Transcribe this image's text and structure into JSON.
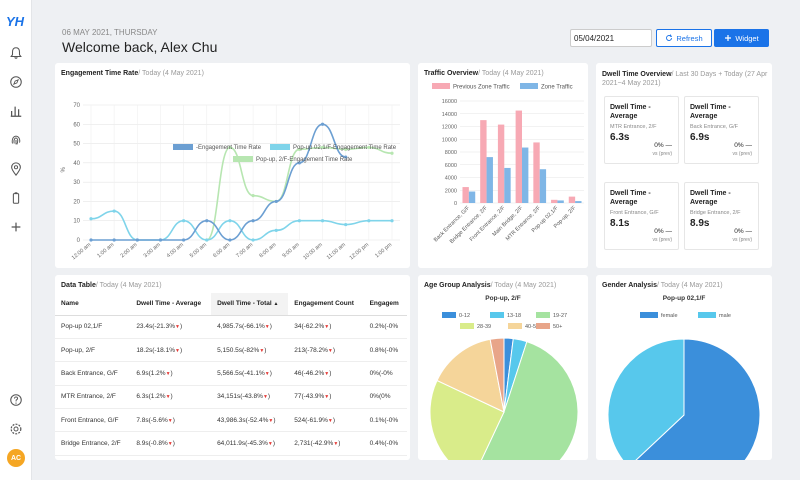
{
  "sidebar": {
    "logo": "YH",
    "items": [
      "bell-icon",
      "compass-icon",
      "bar-chart-icon",
      "fingerprint-icon",
      "location-pin-icon",
      "battery-icon",
      "plus-icon"
    ],
    "bottom": [
      "help-icon",
      "settings-icon"
    ],
    "avatar": "AC"
  },
  "header": {
    "date": "06 MAY 2021, THURSDAY",
    "welcome": "Welcome back, Alex Chu",
    "date_value": "05/04/2021",
    "refresh_label": "Refresh",
    "widget_label": "Widget"
  },
  "engagement": {
    "title": "Engagement Time Rate",
    "subtitle": "/ Today (4 May 2021)",
    "ylabel": "%",
    "yticks": [
      "0",
      "10",
      "20",
      "30",
      "40",
      "50",
      "60",
      "70"
    ],
    "xticks": [
      "12:00 am",
      "1:00 am",
      "2:00 am",
      "3:00 am",
      "4:00 am",
      "5:00 am",
      "6:00 am",
      "7:00 am",
      "8:00 am",
      "9:00 am",
      "10:00 am",
      "11:00 am",
      "12:00 pm",
      "1:00 pm"
    ],
    "colors": {
      "main": "#6c9fd2",
      "popup02": "#7fd4ea",
      "popup2": "#b7e6b1"
    }
  },
  "traffic": {
    "title": "Traffic Overview",
    "subtitle": "/ Today (4 May 2021)",
    "yticks": [
      "0",
      "2000",
      "4000",
      "6000",
      "8000",
      "10000",
      "12000",
      "14000",
      "16000"
    ],
    "colors": {
      "prev": "#f7a9b4",
      "zone": "#7fb6e6"
    }
  },
  "dwell_overview": {
    "title": "Dwell Time Overview",
    "subtitle": "/ Last 30 Days + Today (27 Apr 2021~4 May 2021)",
    "boxes": [
      {
        "title": "Dwell Time - Average",
        "loc": "MTR Entrance, 2/F",
        "value": "6.3s",
        "pct": "0% —",
        "prev": "vs (prev)"
      },
      {
        "title": "Dwell Time - Average",
        "loc": "Back Entrance, G/F",
        "value": "6.9s",
        "pct": "0% —",
        "prev": "vs (prev)"
      },
      {
        "title": "Dwell Time - Average",
        "loc": "Front Entrance, G/F",
        "value": "8.1s",
        "pct": "0% —",
        "prev": "vs (prev)"
      },
      {
        "title": "Dwell Time - Average",
        "loc": "Bridge Entrance, 2/F",
        "value": "8.9s",
        "pct": "0% —",
        "prev": "vs (prev)"
      }
    ]
  },
  "data_table": {
    "title": "Data Table",
    "subtitle": "/ Today (4 May 2021)",
    "headers": [
      "Name",
      "Dwell Time - Average",
      "Dwell Time - Total",
      "Engagement Count",
      "Engagem"
    ],
    "rows": [
      {
        "name": "Pop-up 02,1/F",
        "avg": "23.4s(-21.3%",
        "total": "4,985.7s(-66.1%",
        "count": "34(-62.2%",
        "eng": "0.2%(-0%"
      },
      {
        "name": "Pop-up, 2/F",
        "avg": "18.2s(-18.1%",
        "total": "5,150.5s(-82%",
        "count": "213(-78.2%",
        "eng": "0.8%(-0%"
      },
      {
        "name": "Back Entrance, G/F",
        "avg": "6.9s(1.2%",
        "total": "5,566.5s(-41.1%",
        "count": "46(-46.2%",
        "eng": "0%(-0%"
      },
      {
        "name": "MTR Entrance, 2/F",
        "avg": "6.3s(1.2%",
        "total": "34,151s(-43.8%",
        "count": "77(-43.9%",
        "eng": "0%(0%"
      },
      {
        "name": "Front Entrance, G/F",
        "avg": "7.8s(-5.6%",
        "total": "43,986.3s(-52.4%",
        "count": "524(-61.9%",
        "eng": "0.1%(-0%"
      },
      {
        "name": "Bridge Entrance, 2/F",
        "avg": "8.9s(-0.8%",
        "total": "64,011.9s(-45.3%",
        "count": "2,731(-42.9%",
        "eng": "0.4%(-0%"
      }
    ]
  },
  "age_group": {
    "title": "Age Group Analysis",
    "subtitle": "/ Today (4 May 2021)",
    "chart_title": "Pop-up, 2/F",
    "legend": [
      {
        "label": "0-12",
        "color": "#3b8fdb"
      },
      {
        "label": "13-18",
        "color": "#57c8ec"
      },
      {
        "label": "19-27",
        "color": "#a5e3a0"
      },
      {
        "label": "28-39",
        "color": "#d9ec8a"
      },
      {
        "label": "40-50",
        "color": "#f5d59a"
      },
      {
        "label": "50+",
        "color": "#e8a589"
      }
    ]
  },
  "gender": {
    "title": "Gender Analysis",
    "subtitle": "/ Today (4 May 2021)",
    "chart_title": "Pop-up 02,1/F",
    "legend": [
      {
        "label": "female",
        "color": "#3b8fdb"
      },
      {
        "label": "male",
        "color": "#57c8ec"
      }
    ]
  },
  "chart_data": [
    {
      "type": "line",
      "title": "Engagement Time Rate",
      "ylabel": "%",
      "ylim": [
        0,
        70
      ],
      "x": [
        "12:00 am",
        "1:00 am",
        "2:00 am",
        "3:00 am",
        "4:00 am",
        "5:00 am",
        "6:00 am",
        "7:00 am",
        "8:00 am",
        "9:00 am",
        "10:00 am",
        "11:00 am",
        "12:00 pm",
        "1:00 pm"
      ],
      "series": [
        {
          "name": "-Engagement Time Rate",
          "values": [
            0,
            0,
            0,
            0,
            0,
            10,
            0,
            10,
            20,
            40,
            60,
            43,
            null,
            null
          ]
        },
        {
          "name": "Pop-up 02,1/F-Engagement Time Rate",
          "values": [
            11,
            15,
            0,
            0,
            10,
            0,
            10,
            0,
            5,
            10,
            10,
            8,
            10,
            10
          ]
        },
        {
          "name": "Pop-up, 2/F-Engagement Time Rate",
          "values": [
            null,
            null,
            null,
            null,
            null,
            0,
            48,
            23,
            20,
            47,
            48,
            47,
            48,
            45
          ]
        }
      ]
    },
    {
      "type": "bar",
      "title": "Traffic Overview",
      "ylim": [
        0,
        16000
      ],
      "categories": [
        "Back Entrance, G/F",
        "Bridge Entrance, 2/F",
        "Front Entrance, 2/F",
        "Main Bridge, 2/F",
        "MTR Entrance, 2/F",
        "Pop-up 02,1/F",
        "Pop-up, 2/F"
      ],
      "series": [
        {
          "name": "Previous Zone Traffic",
          "values": [
            2500,
            13000,
            12300,
            14500,
            9500,
            500,
            1000
          ]
        },
        {
          "name": "Zone Traffic",
          "values": [
            1800,
            7200,
            5500,
            8700,
            5300,
            400,
            300
          ]
        }
      ]
    },
    {
      "type": "pie",
      "title": "Pop-up, 2/F",
      "categories": [
        "0-12",
        "13-18",
        "19-27",
        "28-39",
        "40-50",
        "50+"
      ],
      "values": [
        2,
        3,
        52,
        25,
        15,
        3
      ]
    },
    {
      "type": "pie",
      "title": "Pop-up 02,1/F",
      "categories": [
        "female",
        "male"
      ],
      "values": [
        63,
        37
      ]
    }
  ]
}
